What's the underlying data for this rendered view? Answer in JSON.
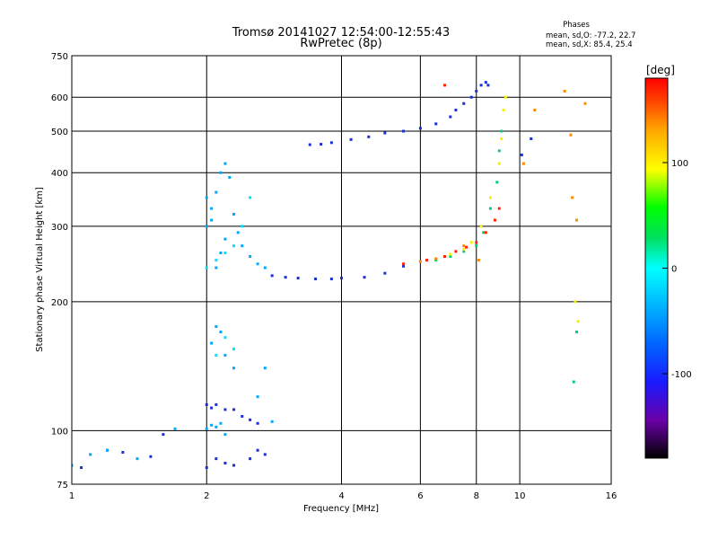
{
  "header": {
    "title_line1": "Tromsø 20141027 12:54:00-12:55:43",
    "title_line2": "RwPretec (8p)",
    "phases_heading": "Phases",
    "phases_line1": "mean, sd,O:  -77.2, 22.7",
    "phases_line2": "mean, sd,X:  85.4, 25.4"
  },
  "chart_data": {
    "type": "scatter",
    "xlabel": "Frequency [MHz]",
    "ylabel": "Stationary phase Virtual Height [km]",
    "x_scale": "log",
    "y_scale": "log",
    "xlim": [
      1,
      16
    ],
    "ylim": [
      75,
      750
    ],
    "x_ticks": [
      1,
      2,
      4,
      6,
      8,
      10,
      16
    ],
    "y_ticks": [
      75,
      100,
      200,
      300,
      400,
      500,
      600,
      750
    ],
    "grid": true,
    "colorbar": {
      "label": "[deg]",
      "range": [
        -180,
        180
      ],
      "ticks": [
        100,
        0,
        -100
      ],
      "colors": [
        "#000000",
        "#6a00a8",
        "#1a1aff",
        "#00b4ff",
        "#00ffff",
        "#00e060",
        "#00ff00",
        "#ffff00",
        "#ffaa00",
        "#ff4400",
        "#ff0000"
      ]
    },
    "series": [
      {
        "color": "#1a2fd6",
        "x": [
          1.05,
          1.2,
          1.3,
          1.5,
          1.6,
          2.0,
          2.05,
          2.1,
          2.2,
          2.3,
          2.4,
          2.5,
          2.6,
          2.8,
          3.0,
          3.2,
          3.5,
          3.8,
          4.0,
          4.5,
          5.0,
          5.5,
          3.4,
          3.6,
          3.8,
          4.2,
          4.6,
          5.0,
          5.5,
          6.0,
          6.5,
          7.0,
          7.2,
          7.5,
          7.8,
          8.0,
          8.2,
          8.4,
          8.5,
          10.1,
          10.6,
          2.0,
          2.1,
          2.2,
          2.3,
          2.5,
          2.6,
          2.7
        ],
        "y": [
          82,
          90,
          89,
          87,
          98,
          115,
          113,
          115,
          112,
          112,
          108,
          106,
          104,
          230,
          228,
          227,
          226,
          226,
          227,
          228,
          233,
          242,
          465,
          466,
          470,
          478,
          485,
          495,
          500,
          508,
          520,
          540,
          560,
          580,
          600,
          620,
          640,
          650,
          640,
          440,
          480,
          82,
          86,
          84,
          83,
          86,
          90,
          88
        ]
      },
      {
        "color": "#00a8ff",
        "x": [
          1.0,
          1.1,
          1.2,
          1.4,
          1.7,
          2.0,
          2.05,
          2.1,
          2.15,
          2.2,
          2.25,
          2.3,
          2.35,
          2.4,
          2.5,
          2.6,
          2.7,
          2.2,
          2.15,
          2.1,
          2.05,
          2.0,
          2.05,
          2.1,
          2.15,
          2.2,
          2.3,
          2.0,
          2.05,
          2.1,
          2.15,
          2.2,
          2.6,
          2.7,
          2.8
        ],
        "y": [
          83,
          88,
          90,
          86,
          101,
          300,
          330,
          360,
          400,
          420,
          390,
          320,
          290,
          270,
          255,
          245,
          240,
          280,
          260,
          240,
          310,
          350,
          160,
          175,
          170,
          150,
          140,
          101,
          103,
          102,
          104,
          98,
          120,
          140,
          105
        ]
      },
      {
        "color": "#00e0ff",
        "x": [
          2.0,
          2.1,
          2.2,
          2.3,
          2.4,
          2.5,
          2.1,
          2.2,
          2.3
        ],
        "y": [
          240,
          250,
          260,
          270,
          300,
          350,
          150,
          165,
          155
        ]
      },
      {
        "color": "#00d070",
        "x": [
          6.5,
          7.0,
          7.5,
          8.0,
          8.3,
          8.6,
          8.9,
          9.0,
          9.1,
          13.2,
          13.4
        ],
        "y": [
          250,
          255,
          262,
          270,
          290,
          330,
          380,
          450,
          500,
          130,
          170
        ]
      },
      {
        "color": "#f2f200",
        "x": [
          7.0,
          7.5,
          7.8,
          8.2,
          8.6,
          9.0,
          9.1,
          9.2,
          9.3,
          13.3,
          13.5
        ],
        "y": [
          258,
          265,
          275,
          300,
          350,
          420,
          480,
          560,
          600,
          200,
          180
        ]
      },
      {
        "color": "#ff8a00",
        "x": [
          6.0,
          6.5,
          7.5,
          8.1,
          10.2,
          10.8,
          12.6,
          13.0,
          13.1,
          13.4,
          14.0
        ],
        "y": [
          248,
          252,
          270,
          250,
          420,
          560,
          620,
          490,
          350,
          310,
          580
        ]
      },
      {
        "color": "#ff2200",
        "x": [
          5.5,
          6.2,
          6.8,
          7.2,
          7.6,
          8.0,
          8.4,
          8.8,
          9.0,
          6.8
        ],
        "y": [
          245,
          250,
          255,
          262,
          268,
          275,
          290,
          310,
          330,
          640
        ]
      }
    ]
  }
}
